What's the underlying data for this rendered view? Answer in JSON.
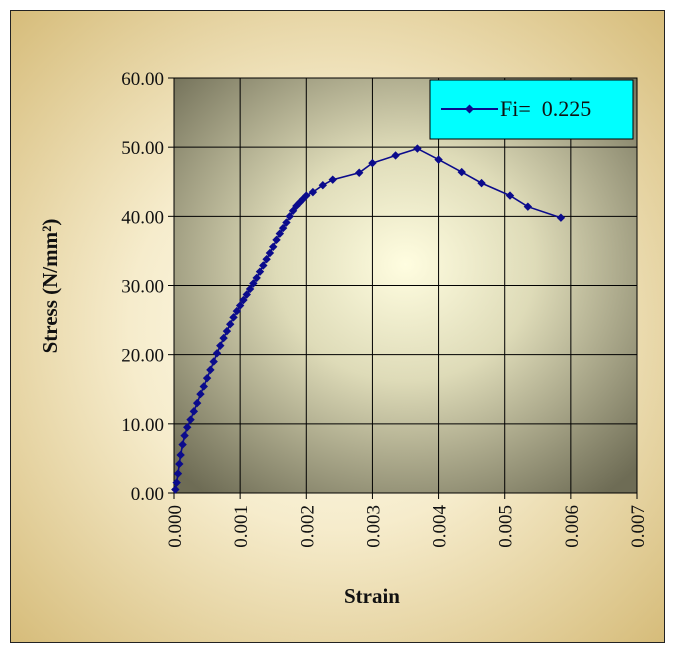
{
  "chart_data": {
    "type": "line",
    "title": "",
    "xlabel": "Strain",
    "ylabel": "Stress (N/mm²)",
    "xlim": [
      0,
      0.007
    ],
    "ylim": [
      0,
      60
    ],
    "x_ticks": [
      "0.000",
      "0.001",
      "0.002",
      "0.003",
      "0.004",
      "0.005",
      "0.006",
      "0.007"
    ],
    "y_ticks": [
      "0.00",
      "10.00",
      "20.00",
      "30.00",
      "40.00",
      "50.00",
      "60.00"
    ],
    "grid": true,
    "legend_position": "top-right",
    "series": [
      {
        "name": "Fi=  0.225",
        "color": "#0b0b8c",
        "x": [
          2e-05,
          4e-05,
          6e-05,
          8e-05,
          0.0001,
          0.00013,
          0.00016,
          0.0002,
          0.00025,
          0.0003,
          0.00035,
          0.0004,
          0.00045,
          0.0005,
          0.00055,
          0.0006,
          0.00065,
          0.0007,
          0.00075,
          0.0008,
          0.00085,
          0.0009,
          0.00095,
          0.001,
          0.00105,
          0.0011,
          0.00115,
          0.0012,
          0.00125,
          0.0013,
          0.00135,
          0.0014,
          0.00145,
          0.0015,
          0.00155,
          0.0016,
          0.00165,
          0.0017,
          0.00175,
          0.0018,
          0.00185,
          0.0019,
          0.00195,
          0.002,
          0.0021,
          0.00225,
          0.0024,
          0.0028,
          0.003,
          0.00335,
          0.00368,
          0.004,
          0.00435,
          0.00465,
          0.00508,
          0.00535,
          0.00585
        ],
        "y": [
          0.5,
          1.5,
          2.8,
          4.2,
          5.5,
          7.0,
          8.3,
          9.5,
          10.6,
          11.8,
          13.0,
          14.3,
          15.4,
          16.6,
          17.8,
          19.0,
          20.2,
          21.3,
          22.4,
          23.4,
          24.4,
          25.4,
          26.3,
          27.1,
          27.9,
          28.7,
          29.5,
          30.3,
          31.1,
          32.0,
          32.9,
          33.8,
          34.7,
          35.6,
          36.6,
          37.5,
          38.3,
          39.1,
          40.0,
          40.8,
          41.5,
          42.0,
          42.5,
          43.0,
          43.5,
          44.5,
          45.3,
          46.3,
          47.7,
          48.8,
          49.8,
          48.2,
          46.4,
          44.8,
          43.0,
          41.4,
          39.8
        ]
      }
    ]
  }
}
